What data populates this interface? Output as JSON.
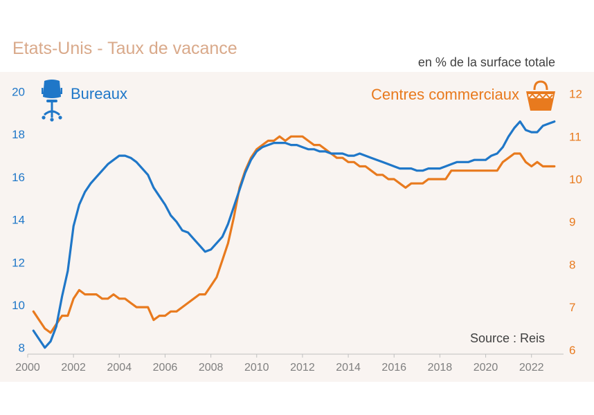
{
  "title": "Etats-Unis - Taux de vacance",
  "subtitle": "en % de la surface totale",
  "colors": {
    "offices": "#1f77c8",
    "malls": "#e87a1e",
    "title": "#d9a98a",
    "background": "#f9f4f1"
  },
  "icons": {
    "offices": "office-chair-icon",
    "malls": "shopping-bag-icon"
  },
  "chart_data": {
    "type": "line",
    "title": "Etats-Unis - Taux de vacance",
    "subtitle": "en % de la surface totale",
    "source": "Source : Reis",
    "xlim": [
      2000,
      2023.4
    ],
    "x_ticks": [
      "2000",
      "2002",
      "2004",
      "2006",
      "2008",
      "2010",
      "2012",
      "2014",
      "2016",
      "2018",
      "2020",
      "2022"
    ],
    "y_left": {
      "label": "Bureaux",
      "ylim": [
        7.7,
        20.6
      ],
      "ticks": [
        "8",
        "10",
        "12",
        "14",
        "16",
        "18",
        "20"
      ]
    },
    "y_right": {
      "label": "Centres commerciaux",
      "ylim": [
        5.9,
        12.35
      ],
      "ticks": [
        "6",
        "7",
        "8",
        "9",
        "10",
        "11",
        "12"
      ]
    },
    "series": [
      {
        "name": "Bureaux",
        "axis": "left",
        "x": [
          2000.25,
          2000.5,
          2000.75,
          2001,
          2001.25,
          2001.5,
          2001.75,
          2002,
          2002.25,
          2002.5,
          2002.75,
          2003,
          2003.25,
          2003.5,
          2003.75,
          2004,
          2004.25,
          2004.5,
          2004.75,
          2005,
          2005.25,
          2005.5,
          2005.75,
          2006,
          2006.25,
          2006.5,
          2006.75,
          2007,
          2007.25,
          2007.5,
          2007.75,
          2008,
          2008.25,
          2008.5,
          2008.75,
          2009,
          2009.25,
          2009.5,
          2009.75,
          2010,
          2010.25,
          2010.5,
          2010.75,
          2011,
          2011.25,
          2011.5,
          2011.75,
          2012,
          2012.25,
          2012.5,
          2012.75,
          2013,
          2013.25,
          2013.5,
          2013.75,
          2014,
          2014.25,
          2014.5,
          2014.75,
          2015,
          2015.25,
          2015.5,
          2015.75,
          2016,
          2016.25,
          2016.5,
          2016.75,
          2017,
          2017.25,
          2017.5,
          2017.75,
          2018,
          2018.25,
          2018.5,
          2018.75,
          2019,
          2019.25,
          2019.5,
          2019.75,
          2020,
          2020.25,
          2020.5,
          2020.75,
          2021,
          2021.25,
          2021.5,
          2021.75,
          2022,
          2022.25,
          2022.5,
          2022.75,
          2023
        ],
        "values": [
          8.8,
          8.4,
          8.0,
          8.3,
          9.0,
          10.4,
          11.6,
          13.7,
          14.7,
          15.3,
          15.7,
          16.0,
          16.3,
          16.6,
          16.8,
          17.0,
          17.0,
          16.9,
          16.7,
          16.4,
          16.1,
          15.5,
          15.1,
          14.7,
          14.2,
          13.9,
          13.5,
          13.4,
          13.1,
          12.8,
          12.5,
          12.6,
          12.9,
          13.2,
          13.8,
          14.6,
          15.4,
          16.2,
          16.8,
          17.2,
          17.4,
          17.5,
          17.6,
          17.6,
          17.6,
          17.5,
          17.5,
          17.4,
          17.3,
          17.3,
          17.2,
          17.2,
          17.1,
          17.1,
          17.1,
          17.0,
          17.0,
          17.1,
          17.0,
          16.9,
          16.8,
          16.7,
          16.6,
          16.5,
          16.4,
          16.4,
          16.4,
          16.3,
          16.3,
          16.4,
          16.4,
          16.4,
          16.5,
          16.6,
          16.7,
          16.7,
          16.7,
          16.8,
          16.8,
          16.8,
          17.0,
          17.1,
          17.4,
          17.9,
          18.3,
          18.6,
          18.2,
          18.1,
          18.1,
          18.4,
          18.5,
          18.6
        ]
      },
      {
        "name": "Centres commerciaux",
        "axis": "right",
        "x": [
          2000.25,
          2000.5,
          2000.75,
          2001,
          2001.25,
          2001.5,
          2001.75,
          2002,
          2002.25,
          2002.5,
          2002.75,
          2003,
          2003.25,
          2003.5,
          2003.75,
          2004,
          2004.25,
          2004.5,
          2004.75,
          2005,
          2005.25,
          2005.5,
          2005.75,
          2006,
          2006.25,
          2006.5,
          2006.75,
          2007,
          2007.25,
          2007.5,
          2007.75,
          2008,
          2008.25,
          2008.5,
          2008.75,
          2009,
          2009.25,
          2009.5,
          2009.75,
          2010,
          2010.25,
          2010.5,
          2010.75,
          2011,
          2011.25,
          2011.5,
          2011.75,
          2012,
          2012.25,
          2012.5,
          2012.75,
          2013,
          2013.25,
          2013.5,
          2013.75,
          2014,
          2014.25,
          2014.5,
          2014.75,
          2015,
          2015.25,
          2015.5,
          2015.75,
          2016,
          2016.25,
          2016.5,
          2016.75,
          2017,
          2017.25,
          2017.5,
          2017.75,
          2018,
          2018.25,
          2018.5,
          2018.75,
          2019,
          2019.25,
          2019.5,
          2019.75,
          2020,
          2020.25,
          2020.5,
          2020.75,
          2021,
          2021.25,
          2021.5,
          2021.75,
          2022,
          2022.25,
          2022.5,
          2022.75,
          2023
        ],
        "values": [
          6.9,
          6.7,
          6.5,
          6.4,
          6.6,
          6.8,
          6.8,
          7.2,
          7.4,
          7.3,
          7.3,
          7.3,
          7.2,
          7.2,
          7.3,
          7.2,
          7.2,
          7.1,
          7.0,
          7.0,
          7.0,
          6.7,
          6.8,
          6.8,
          6.9,
          6.9,
          7.0,
          7.1,
          7.2,
          7.3,
          7.3,
          7.5,
          7.7,
          8.1,
          8.5,
          9.1,
          9.8,
          10.2,
          10.5,
          10.7,
          10.8,
          10.9,
          10.9,
          11.0,
          10.9,
          11.0,
          11.0,
          11.0,
          10.9,
          10.8,
          10.8,
          10.7,
          10.6,
          10.5,
          10.5,
          10.4,
          10.4,
          10.3,
          10.3,
          10.2,
          10.1,
          10.1,
          10.0,
          10.0,
          9.9,
          9.8,
          9.9,
          9.9,
          9.9,
          10.0,
          10.0,
          10.0,
          10.0,
          10.2,
          10.2,
          10.2,
          10.2,
          10.2,
          10.2,
          10.2,
          10.2,
          10.2,
          10.4,
          10.5,
          10.6,
          10.6,
          10.4,
          10.3,
          10.4,
          10.3,
          10.3,
          10.3
        ]
      }
    ]
  }
}
